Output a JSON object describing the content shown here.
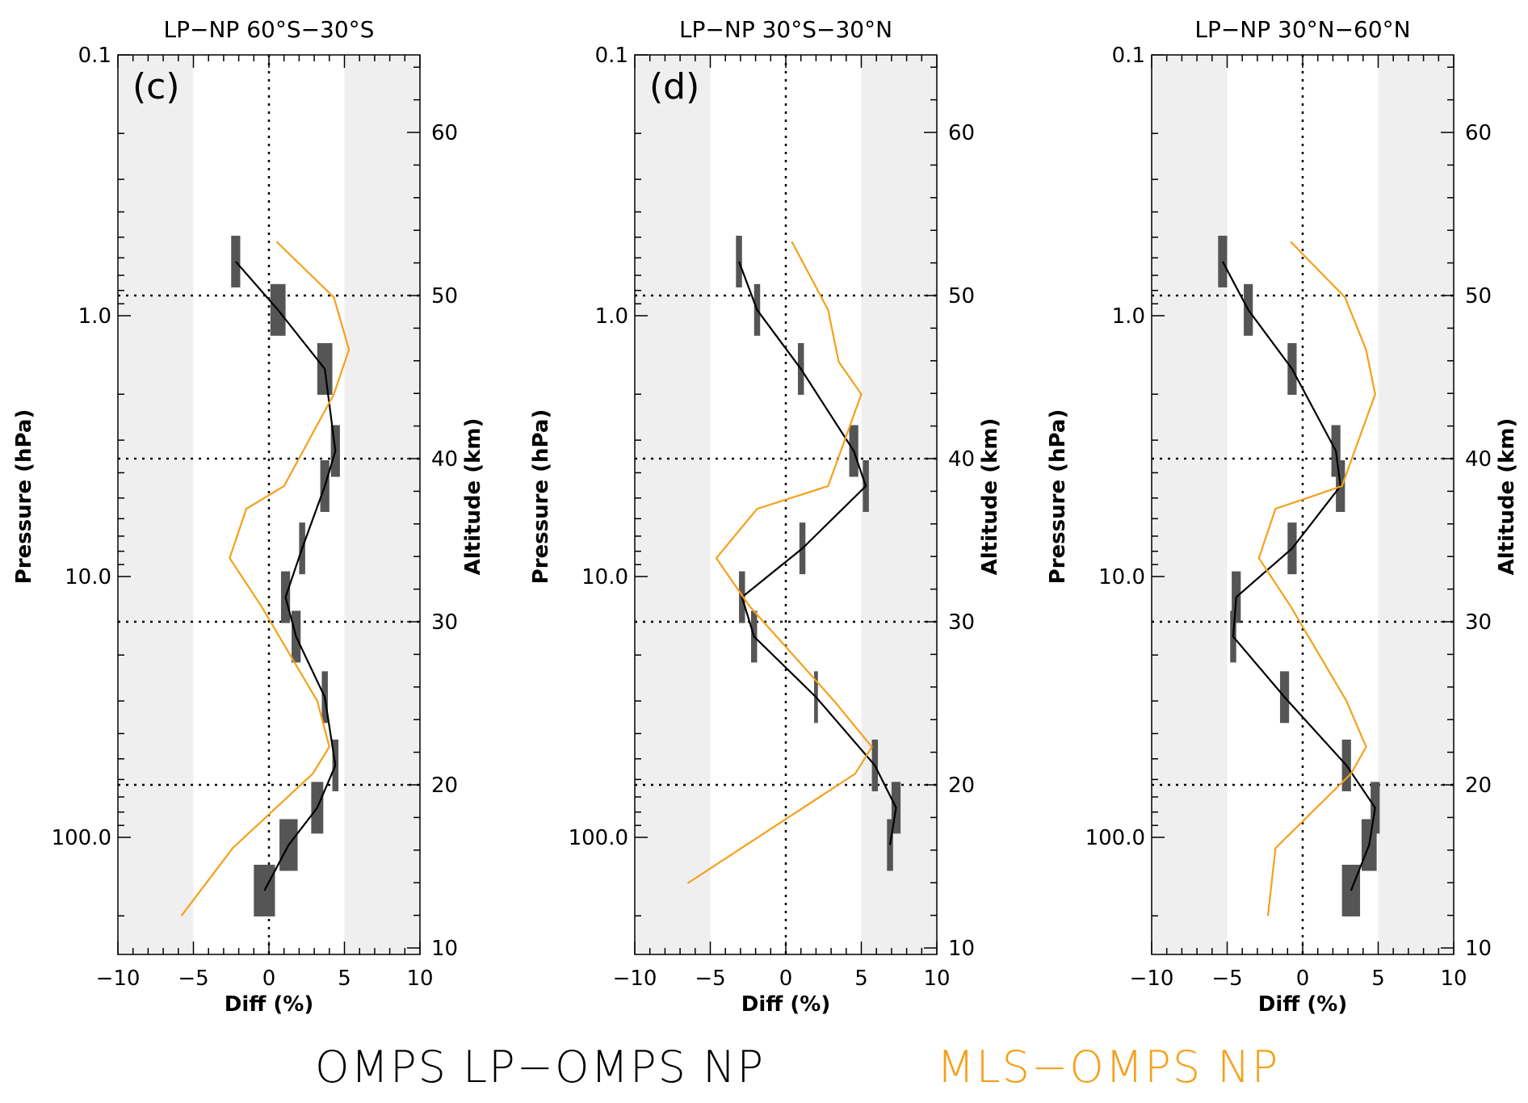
{
  "chart_data": [
    {
      "type": "line",
      "panel_label": "(c)",
      "title": "LP−NP 60°S−30°S",
      "xlabel": "Diff (%)",
      "ylabel": "Pressure (hPa)",
      "y2label": "Altitude (km)",
      "xlim": [
        -10,
        10
      ],
      "ylim_pressure": [
        0.1,
        400
      ],
      "xticks": [
        "−10",
        "−5",
        "0",
        "5",
        "10"
      ],
      "yticks": [
        "0.1",
        "1.0",
        "10.0",
        "100.0"
      ],
      "y2ticks": [
        "10",
        "20",
        "30",
        "40",
        "50",
        "60"
      ],
      "series": [
        {
          "name": "OMPS LP−OMPS NP",
          "x": [
            -2.2,
            0.6,
            3.7,
            4.4,
            3.7,
            2.2,
            1.1,
            1.8,
            3.7,
            4.4,
            3.2,
            1.3,
            -0.3
          ],
          "y": [
            0.62,
            0.95,
            1.6,
            3.3,
            4.5,
            7.8,
            12.0,
            17.0,
            29.0,
            53.0,
            77.0,
            107.0,
            160.0
          ],
          "errors": [
            0.3,
            0.5,
            0.5,
            0.3,
            0.3,
            0.2,
            0.3,
            0.3,
            0.2,
            0.2,
            0.4,
            0.6,
            0.7
          ]
        },
        {
          "name": "MLS−OMPS NP",
          "x": [
            0.5,
            4.3,
            5.3,
            4.3,
            1.0,
            -1.5,
            -2.6,
            -0.5,
            3.2,
            4.0,
            2.9,
            -2.4,
            -5.8
          ],
          "y": [
            0.52,
            0.85,
            1.35,
            2.0,
            4.5,
            5.5,
            8.5,
            13.0,
            30.0,
            45.0,
            57.0,
            110.0,
            200.0
          ]
        }
      ]
    },
    {
      "type": "line",
      "panel_label": "(d)",
      "title": "LP−NP 30°S−30°N",
      "xlabel": "Diff (%)",
      "ylabel": "Pressure (hPa)",
      "y2label": "Altitude (km)",
      "xlim": [
        -10,
        10
      ],
      "ylim_pressure": [
        0.1,
        400
      ],
      "xticks": [
        "−10",
        "−5",
        "0",
        "5",
        "10"
      ],
      "yticks": [
        "0.1",
        "1.0",
        "10.0",
        "100.0"
      ],
      "y2ticks": [
        "10",
        "20",
        "30",
        "40",
        "50",
        "60"
      ],
      "series": [
        {
          "name": "OMPS LP−OMPS NP",
          "x": [
            -3.1,
            -1.9,
            1.0,
            4.5,
            5.3,
            1.1,
            -2.9,
            -2.1,
            2.0,
            5.9,
            7.3,
            6.9
          ],
          "y": [
            0.62,
            0.95,
            1.6,
            3.3,
            4.5,
            7.8,
            12.0,
            17.0,
            29.0,
            53.0,
            77.0,
            107.0
          ],
          "errors": [
            0.2,
            0.2,
            0.2,
            0.3,
            0.2,
            0.2,
            0.2,
            0.2,
            0.1,
            0.2,
            0.3,
            0.2
          ]
        },
        {
          "name": "MLS−OMPS NP",
          "x": [
            0.4,
            2.8,
            3.5,
            5.0,
            2.8,
            -1.9,
            -4.6,
            -2.4,
            3.2,
            5.7,
            4.6,
            -6.5
          ],
          "y": [
            0.52,
            0.95,
            1.5,
            2.0,
            4.5,
            5.5,
            8.5,
            13.0,
            30.0,
            45.0,
            57.0,
            150.0
          ]
        }
      ]
    },
    {
      "type": "line",
      "panel_label": "",
      "title": "LP−NP 30°N−60°N",
      "xlabel": "Diff (%)",
      "ylabel": "Pressure (hPa)",
      "y2label": "Altitude (km)",
      "xlim": [
        -10,
        10
      ],
      "ylim_pressure": [
        0.1,
        400
      ],
      "xticks": [
        "−10",
        "−5",
        "0",
        "5",
        "10"
      ],
      "yticks": [
        "0.1",
        "1.0",
        "10.0",
        "100.0"
      ],
      "y2ticks": [
        "10",
        "20",
        "30",
        "40",
        "50",
        "60"
      ],
      "series": [
        {
          "name": "OMPS LP−OMPS NP",
          "x": [
            -5.3,
            -3.6,
            -0.7,
            2.2,
            2.5,
            -0.7,
            -4.4,
            -4.6,
            -1.2,
            2.9,
            4.8,
            4.4,
            3.2
          ],
          "y": [
            0.62,
            0.95,
            1.6,
            3.3,
            4.5,
            7.8,
            12.0,
            17.0,
            29.0,
            53.0,
            77.0,
            107.0,
            160.0
          ],
          "errors": [
            0.3,
            0.3,
            0.3,
            0.3,
            0.3,
            0.3,
            0.3,
            0.2,
            0.3,
            0.3,
            0.3,
            0.5,
            0.6
          ]
        },
        {
          "name": "MLS−OMPS NP",
          "x": [
            -0.8,
            2.8,
            4.2,
            4.8,
            2.6,
            -1.8,
            -2.9,
            -0.8,
            2.9,
            4.2,
            3.2,
            -1.8,
            -2.3
          ],
          "y": [
            0.52,
            0.85,
            1.35,
            2.0,
            4.5,
            5.5,
            8.5,
            13.0,
            30.0,
            45.0,
            57.0,
            110.0,
            200.0
          ]
        }
      ]
    }
  ],
  "legend": {
    "black_label": "OMPS LP−OMPS NP",
    "orange_label": "MLS−OMPS NP"
  },
  "colors": {
    "lp_np": "#000000",
    "mls_np": "#f5a01a",
    "shade": "#efefef",
    "errbar": "#555555"
  }
}
